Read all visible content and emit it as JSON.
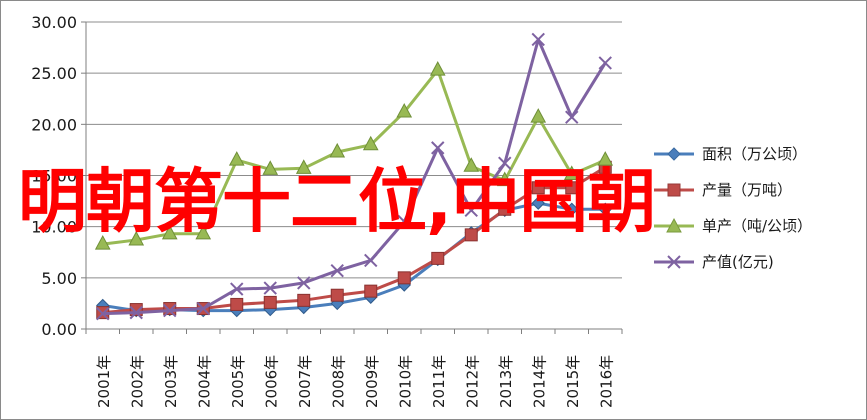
{
  "chart_data": {
    "type": "line",
    "title": "",
    "xlabel": "",
    "ylabel": "",
    "ylim": [
      0,
      30
    ],
    "y_ticks": [
      "0.00",
      "5.00",
      "10.00",
      "15.00",
      "20.00",
      "25.00",
      "30.00"
    ],
    "categories": [
      "2001年",
      "2002年",
      "2003年",
      "2004年",
      "2005年",
      "2006年",
      "2007年",
      "2008年",
      "2009年",
      "2010年",
      "2011年",
      "2012年",
      "2013年",
      "2014年",
      "2015年",
      "2016年"
    ],
    "grid": true,
    "legend_position": "right",
    "series": [
      {
        "name": "面积（万公顷）",
        "color": "#4a7ebb",
        "marker": "diamond",
        "values": [
          2.3,
          1.8,
          1.9,
          1.8,
          1.8,
          1.9,
          2.1,
          2.5,
          3.1,
          4.3,
          6.8,
          9.4,
          11.6,
          12.3,
          11.7,
          11.7
        ]
      },
      {
        "name": "产量（万吨）",
        "color": "#be4b48",
        "marker": "square",
        "values": [
          1.6,
          1.9,
          2.0,
          2.0,
          2.4,
          2.6,
          2.8,
          3.3,
          3.7,
          5.0,
          6.9,
          9.2,
          11.7,
          13.8,
          13.8,
          15.8
        ]
      },
      {
        "name": "单产（吨/公顷）",
        "color": "#98b954",
        "marker": "triangle",
        "values": [
          8.3,
          8.7,
          9.3,
          9.3,
          16.5,
          15.6,
          15.7,
          17.3,
          18.0,
          21.2,
          25.3,
          15.9,
          14.5,
          20.7,
          15.1,
          16.5
        ]
      },
      {
        "name": "产值(亿元)",
        "color": "#7e62a1",
        "marker": "x",
        "values": [
          1.5,
          1.6,
          1.8,
          2.0,
          3.9,
          4.0,
          4.5,
          5.7,
          6.7,
          10.5,
          17.7,
          11.6,
          16.2,
          28.3,
          20.7,
          26.0
        ]
      }
    ]
  },
  "overlay_text": "明朝第十二位,中国朝"
}
